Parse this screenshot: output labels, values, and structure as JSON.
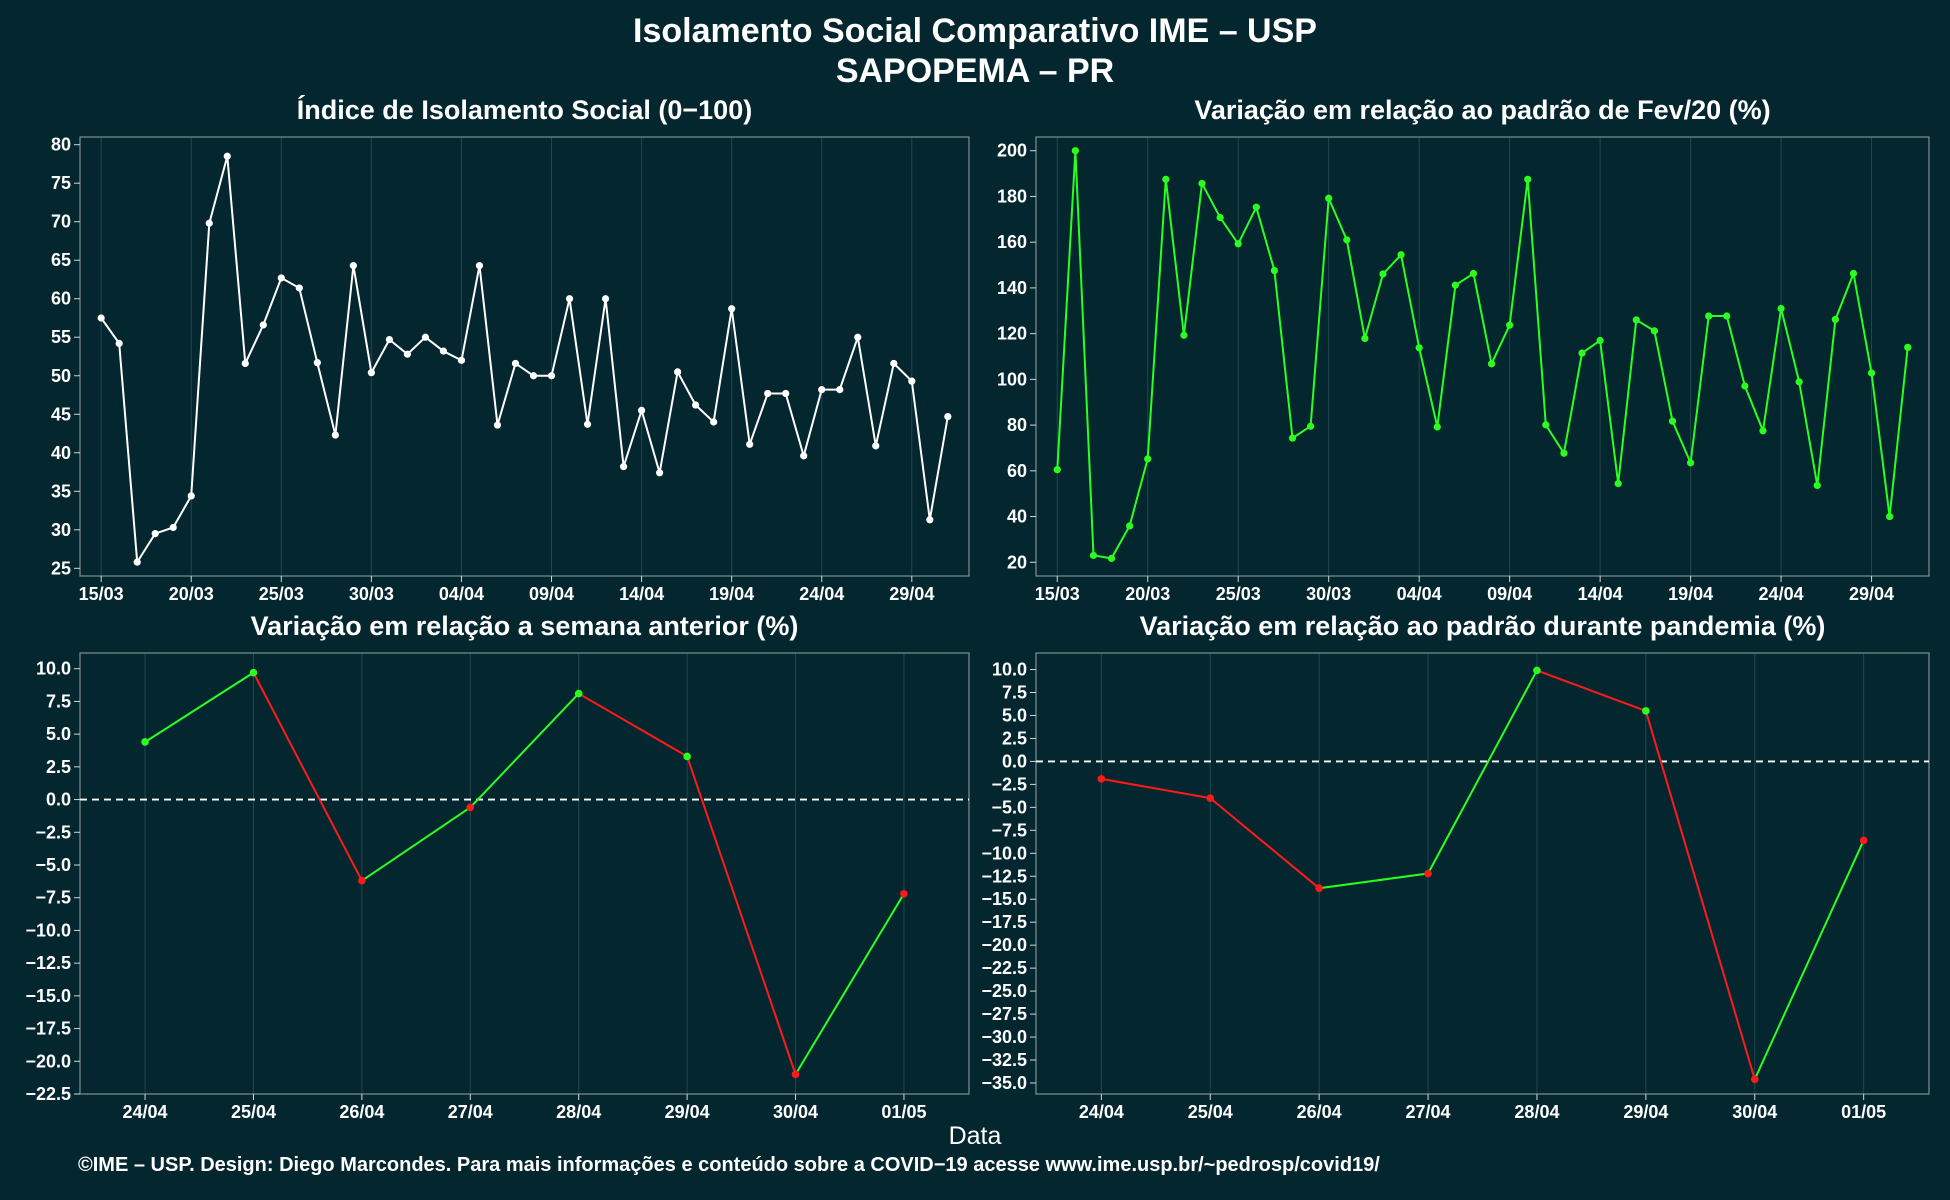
{
  "title": "Isolamento Social Comparativo IME – USP",
  "subtitle": "SAPOPEMA – PR",
  "xlabel": "Data",
  "caption": "©IME – USP. Design: Diego Marcondes. Para mais informações e conteúdo sobre a COVID−19 acesse www.ime.usp.br/~pedrosp/covid19/",
  "colors": {
    "background": "#04272f",
    "grid": "#23474f",
    "white": "#ffffff",
    "green": "#2bff20",
    "red": "#ff1a1a"
  },
  "chart_data": [
    {
      "type": "line",
      "title": "Índice de Isolamento Social (0−100)",
      "color": "#ffffff",
      "x_ticks": [
        "15/03",
        "20/03",
        "25/03",
        "30/03",
        "04/04",
        "09/04",
        "14/04",
        "19/04",
        "24/04",
        "29/04"
      ],
      "ylim": [
        24,
        81
      ],
      "y_ticks": [
        25,
        30,
        35,
        40,
        45,
        50,
        55,
        60,
        65,
        70,
        75,
        80
      ],
      "y_tick_labels": [
        "25",
        "30",
        "35",
        "40",
        "45",
        "50",
        "55",
        "60",
        "65",
        "70",
        "75",
        "80"
      ],
      "x_dates": [
        "15/03",
        "16/03",
        "17/03",
        "18/03",
        "19/03",
        "20/03",
        "21/03",
        "22/03",
        "23/03",
        "24/03",
        "25/03",
        "26/03",
        "27/03",
        "28/03",
        "29/03",
        "30/03",
        "31/03",
        "01/04",
        "02/04",
        "03/04",
        "04/04",
        "05/04",
        "06/04",
        "07/04",
        "08/04",
        "09/04",
        "10/04",
        "11/04",
        "12/04",
        "13/04",
        "14/04",
        "15/04",
        "16/04",
        "17/04",
        "18/04",
        "19/04",
        "20/04",
        "21/04",
        "22/04",
        "23/04",
        "24/04",
        "25/04",
        "26/04",
        "27/04",
        "28/04",
        "29/04",
        "30/04",
        "01/05"
      ],
      "values": [
        57.5,
        54.2,
        25.8,
        29.5,
        30.3,
        34.4,
        69.8,
        78.5,
        51.6,
        56.6,
        62.7,
        61.4,
        51.7,
        42.3,
        64.3,
        50.4,
        54.7,
        52.8,
        55.0,
        53.2,
        52.0,
        64.3,
        43.6,
        51.6,
        50.0,
        50.0,
        60.0,
        43.7,
        60.0,
        38.2,
        45.5,
        37.4,
        50.5,
        46.2,
        44.0,
        58.7,
        41.1,
        47.7,
        47.7,
        39.6,
        48.2,
        48.2,
        55.0,
        40.9,
        51.6,
        49.3,
        31.3,
        44.7
      ]
    },
    {
      "type": "line",
      "title": "Variação em relação ao padrão de Fev/20 (%)",
      "color": "#2bff20",
      "x_ticks": [
        "15/03",
        "20/03",
        "25/03",
        "30/03",
        "04/04",
        "09/04",
        "14/04",
        "19/04",
        "24/04",
        "29/04"
      ],
      "ylim": [
        14,
        206
      ],
      "y_ticks": [
        20,
        40,
        60,
        80,
        100,
        120,
        140,
        160,
        180,
        200
      ],
      "y_tick_labels": [
        "20",
        "40",
        "60",
        "80",
        "100",
        "120",
        "140",
        "160",
        "180",
        "200"
      ],
      "x_dates": [
        "15/03",
        "16/03",
        "17/03",
        "18/03",
        "19/03",
        "20/03",
        "21/03",
        "22/03",
        "23/03",
        "24/03",
        "25/03",
        "26/03",
        "27/03",
        "28/03",
        "29/03",
        "30/03",
        "31/03",
        "01/04",
        "02/04",
        "03/04",
        "04/04",
        "05/04",
        "06/04",
        "07/04",
        "08/04",
        "09/04",
        "10/04",
        "11/04",
        "12/04",
        "13/04",
        "14/04",
        "15/04",
        "16/04",
        "17/04",
        "18/04",
        "19/04",
        "20/04",
        "21/04",
        "22/04",
        "23/04",
        "24/04",
        "25/04",
        "26/04",
        "27/04",
        "28/04",
        "29/04",
        "30/04",
        "01/05"
      ],
      "values": [
        60.5,
        200.0,
        23.0,
        21.7,
        35.9,
        65.2,
        187.5,
        119.3,
        185.7,
        170.8,
        159.3,
        175.3,
        147.6,
        74.3,
        79.5,
        179.2,
        161.0,
        117.9,
        146.1,
        154.5,
        113.8,
        79.2,
        141.2,
        146.3,
        106.8,
        123.7,
        187.5,
        80.1,
        67.7,
        111.5,
        117.0,
        54.4,
        126.0,
        121.2,
        81.7,
        63.5,
        127.7,
        127.7,
        97.1,
        77.5,
        131.0,
        98.9,
        53.6,
        126.2,
        146.3,
        102.8,
        40.0,
        114.0
      ]
    },
    {
      "type": "line",
      "title": "Variação em relação a semana anterior (%)",
      "colored_by_sign": true,
      "zero_line": "dashed",
      "categories": [
        "24/04",
        "25/04",
        "26/04",
        "27/04",
        "28/04",
        "29/04",
        "30/04",
        "01/05"
      ],
      "ylim": [
        -22.5,
        11.2
      ],
      "y_ticks": [
        -22.5,
        -20,
        -17.5,
        -15,
        -12.5,
        -10,
        -7.5,
        -5,
        -2.5,
        0,
        2.5,
        5,
        7.5,
        10
      ],
      "y_tick_labels": [
        "−22.5",
        "−20.0",
        "−17.5",
        "−15.0",
        "−12.5",
        "−10.0",
        "−7.5",
        "−5.0",
        "−2.5",
        "0.0",
        "2.5",
        "5.0",
        "7.5",
        "10.0"
      ],
      "values": [
        4.4,
        9.7,
        -6.2,
        -0.6,
        8.1,
        3.3,
        -21.0,
        -7.2
      ]
    },
    {
      "type": "line",
      "title": "Variação em relação ao padrão durante pandemia (%)",
      "colored_by_sign": true,
      "zero_line": "dashed",
      "categories": [
        "24/04",
        "25/04",
        "26/04",
        "27/04",
        "28/04",
        "29/04",
        "30/04",
        "01/05"
      ],
      "ylim": [
        -36.2,
        11.8
      ],
      "y_ticks": [
        -35,
        -32.5,
        -30,
        -27.5,
        -25,
        -22.5,
        -20,
        -17.5,
        -15,
        -12.5,
        -10,
        -7.5,
        -5,
        -2.5,
        0,
        2.5,
        5,
        7.5,
        10
      ],
      "y_tick_labels": [
        "−35.0",
        "−32.5",
        "−30.0",
        "−27.5",
        "−25.0",
        "−22.5",
        "−20.0",
        "−17.5",
        "−15.0",
        "−12.5",
        "−10.0",
        "−7.5",
        "−5.0",
        "−2.5",
        "0.0",
        "2.5",
        "5.0",
        "7.5",
        "10.0"
      ],
      "values": [
        -1.9,
        -4.0,
        -13.8,
        -12.2,
        9.9,
        5.5,
        -34.6,
        -8.6
      ]
    }
  ]
}
